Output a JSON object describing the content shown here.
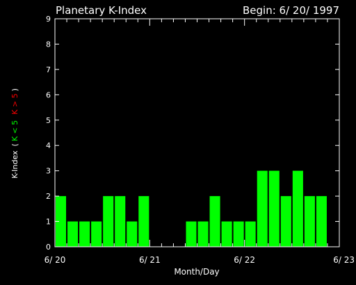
{
  "chart_data": {
    "type": "bar",
    "title": "Planetary K-Index",
    "begin_label": "Begin: 6/ 20/ 1997",
    "xlabel": "Month/Day",
    "ylabel": {
      "prefix": "K-Index",
      "open": "(",
      "low": "K < 5",
      "high": "K > 5",
      "close": ")"
    },
    "ylim": [
      0,
      9
    ],
    "yticks": [
      "0",
      "1",
      "2",
      "3",
      "4",
      "5",
      "6",
      "7",
      "8",
      "9"
    ],
    "xlim": [
      0,
      24
    ],
    "xticks": [
      {
        "value": 0,
        "label": "6/ 20"
      },
      {
        "value": 8,
        "label": "6/ 21"
      },
      {
        "value": 16,
        "label": "6/ 22"
      },
      {
        "value": 24,
        "label": "6/ 23"
      }
    ],
    "interval_hours": 3,
    "values": [
      2,
      1,
      1,
      1,
      2,
      2,
      1,
      2,
      null,
      null,
      null,
      1,
      1,
      2,
      1,
      1,
      1,
      3,
      3,
      2,
      3,
      2,
      2,
      null
    ],
    "colors": {
      "low": "#00ff00",
      "high": "#ff0000",
      "axis": "#ffffff",
      "background": "#000000"
    }
  }
}
